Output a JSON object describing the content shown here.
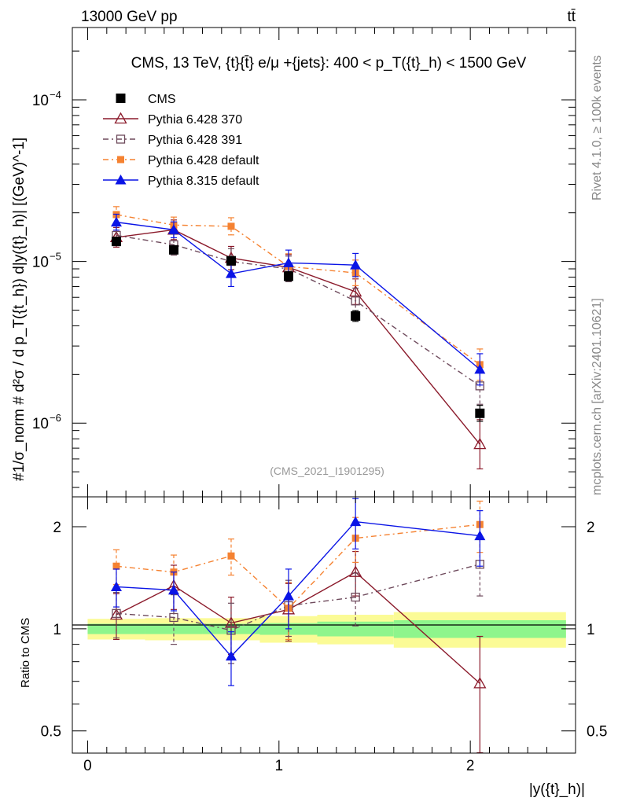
{
  "header": {
    "left": "13000 GeV pp",
    "right": "tt̄"
  },
  "side_text": {
    "top": "Rivet 4.1.0, ≥ 100k events",
    "bottom": "mcplots.cern.ch [arXiv:2401.10621]"
  },
  "colors": {
    "cms": "#000000",
    "p6_370": "#8b1a2b",
    "p6_391": "#6e4a5c",
    "p6_default": "#f58231",
    "p8_default": "#0a14e6",
    "band_stat": "#8ef58c",
    "band_total": "#fbfb96"
  },
  "chart_data": [
    {
      "type": "scatter",
      "panel": "main",
      "title": "CMS, 13 TeV, {t}{t̄} e/μ +{jets}: 400 <  p_T({t}_h) < 1500 GeV",
      "ylabel": "#1/σ_norm # d²σ / d p_T({t_h}) d|y({t}_h)| [(GeV)^-1]",
      "xlabel": "|y({t}_h)|",
      "reference": "(CMS_2021_I1901295)",
      "yscale": "log",
      "xlim": [
        -0.08,
        2.55
      ],
      "ylim": [
        3.5e-07,
        0.00028
      ],
      "y_tick_labels": [
        {
          "value": 1e-06,
          "label": "10",
          "exp": "−6"
        },
        {
          "value": 1e-05,
          "label": "10",
          "exp": "−5"
        },
        {
          "value": 0.0001,
          "label": "10",
          "exp": "−4"
        }
      ],
      "x_bins": [
        [
          0,
          0.3
        ],
        [
          0.3,
          0.6
        ],
        [
          0.6,
          0.9
        ],
        [
          0.9,
          1.2
        ],
        [
          1.2,
          1.6
        ],
        [
          1.6,
          2.5
        ]
      ],
      "x": [
        0.15,
        0.45,
        0.75,
        1.05,
        1.4,
        2.05
      ],
      "series": [
        {
          "name": "CMS",
          "key": "cms",
          "marker": "square-filled",
          "line": "none",
          "values": [
            1.33e-05,
            1.18e-05,
            1.01e-05,
            8.1e-06,
            4.6e-06,
            1.15e-06
          ],
          "err": [
            0.06,
            0.06,
            0.06,
            0.07,
            0.08,
            0.12
          ]
        },
        {
          "name": "Pythia 6.428 370",
          "key": "p6_370",
          "marker": "triangle-open",
          "line": "solid",
          "values": [
            1.41e-05,
            1.57e-05,
            1.05e-05,
            9.2e-06,
            6.5e-06,
            7.4e-07
          ],
          "err": [
            0.15,
            0.15,
            0.18,
            0.2,
            0.2,
            0.42
          ]
        },
        {
          "name": "Pythia 6.428 391",
          "key": "p6_391",
          "marker": "square-open",
          "line": "dashdot",
          "values": [
            1.45e-05,
            1.27e-05,
            1e-05,
            9e-06,
            5.7e-06,
            1.7e-06
          ],
          "err": [
            0.15,
            0.16,
            0.2,
            0.2,
            0.2,
            0.3
          ]
        },
        {
          "name": "Pythia 6.428 default",
          "key": "p6_default",
          "marker": "square-filled-small",
          "line": "dashdot",
          "values": [
            1.95e-05,
            1.68e-05,
            1.65e-05,
            9.3e-06,
            8.5e-06,
            2.3e-06
          ],
          "err": [
            0.12,
            0.12,
            0.13,
            0.2,
            0.2,
            0.25
          ]
        },
        {
          "name": "Pythia 8.315 default",
          "key": "p8_default",
          "marker": "triangle-filled",
          "line": "solid",
          "values": [
            1.75e-05,
            1.57e-05,
            8.4e-06,
            9.8e-06,
            9.5e-06,
            2.15e-06
          ],
          "err": [
            0.12,
            0.12,
            0.2,
            0.2,
            0.18,
            0.25
          ]
        }
      ]
    },
    {
      "type": "scatter",
      "panel": "ratio",
      "ylabel": "Ratio to CMS",
      "yscale": "log",
      "xlim": [
        -0.08,
        2.55
      ],
      "ylim": [
        0.43,
        2.45
      ],
      "y_tick_labels": [
        {
          "value": 0.5,
          "label": "0.5"
        },
        {
          "value": 1,
          "label": "1"
        },
        {
          "value": 2,
          "label": "2"
        }
      ],
      "x_tick_labels": [
        {
          "value": 0,
          "label": "0"
        },
        {
          "value": 1,
          "label": "1"
        },
        {
          "value": 2,
          "label": "2"
        }
      ],
      "x": [
        0.15,
        0.45,
        0.75,
        1.05,
        1.4,
        2.05
      ],
      "bands": {
        "edges": [
          0,
          0.3,
          0.6,
          0.9,
          1.2,
          1.6,
          2.5
        ],
        "stat": [
          0.035,
          0.035,
          0.035,
          0.04,
          0.05,
          0.06
        ],
        "total": [
          0.07,
          0.075,
          0.075,
          0.09,
          0.1,
          0.12
        ]
      },
      "series": [
        {
          "name": "Pythia 6.428 370",
          "key": "p6_370",
          "values": [
            1.1,
            1.34,
            1.04,
            1.14,
            1.47,
            0.69
          ],
          "err": [
            0.17,
            0.2,
            0.2,
            0.22,
            0.22,
            0.26
          ]
        },
        {
          "name": "Pythia 6.428 391",
          "key": "p6_391",
          "values": [
            1.11,
            1.08,
            0.99,
            1.17,
            1.24,
            1.55
          ],
          "err": [
            0.17,
            0.18,
            0.2,
            0.22,
            0.22,
            0.3
          ]
        },
        {
          "name": "Pythia 6.428 default",
          "key": "p6_default",
          "values": [
            1.53,
            1.47,
            1.64,
            1.15,
            1.85,
            2.03
          ],
          "err": [
            0.18,
            0.18,
            0.2,
            0.22,
            0.28,
            0.35
          ]
        },
        {
          "name": "Pythia 8.315 default",
          "key": "p8_default",
          "values": [
            1.33,
            1.3,
            0.83,
            1.25,
            2.07,
            1.88
          ],
          "err": [
            0.17,
            0.17,
            0.15,
            0.25,
            0.35,
            0.35
          ]
        }
      ]
    }
  ]
}
